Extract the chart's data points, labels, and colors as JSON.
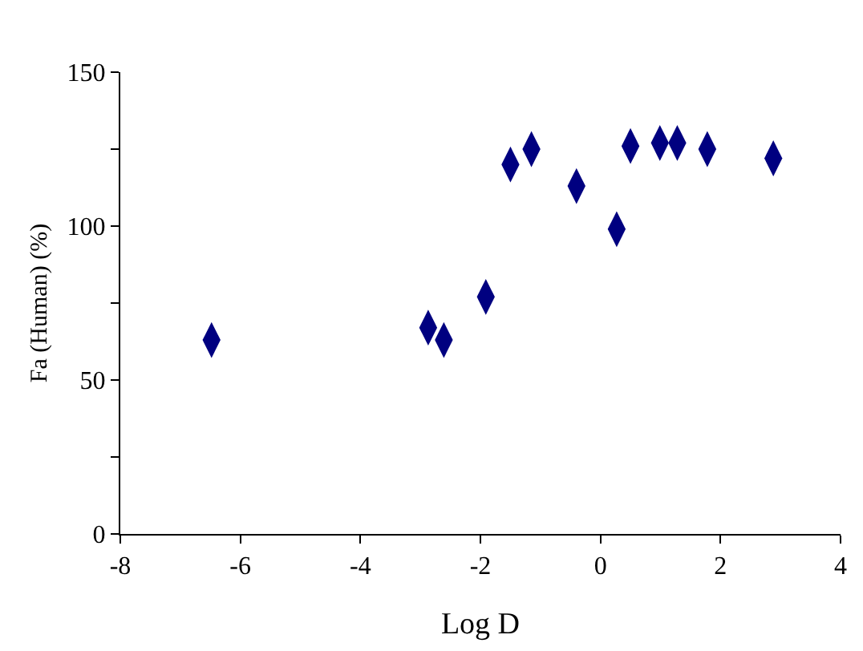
{
  "chart_data": {
    "type": "scatter",
    "xlabel": "Log D",
    "ylabel": "Fa (Human) (%)",
    "x": [
      -6.48,
      -2.87,
      -2.61,
      -1.91,
      -1.5,
      -1.15,
      -0.4,
      0.27,
      0.5,
      0.99,
      1.28,
      1.78,
      2.88
    ],
    "series": [
      {
        "color": "#000080",
        "values": [
          63,
          67,
          63,
          77,
          120,
          125,
          113,
          99,
          126,
          127,
          127,
          125,
          122
        ]
      }
    ],
    "xlim": [
      -8,
      4
    ],
    "xticks": [
      -8,
      -6,
      -4,
      -2,
      0,
      2,
      4
    ],
    "ylim": [
      0,
      150
    ],
    "yticks": [
      0,
      {
        "value": 25,
        "label": null
      },
      50,
      {
        "value": 75,
        "label": null
      },
      100,
      {
        "value": 125,
        "label": null
      },
      150
    ],
    "marker": "diamond"
  }
}
